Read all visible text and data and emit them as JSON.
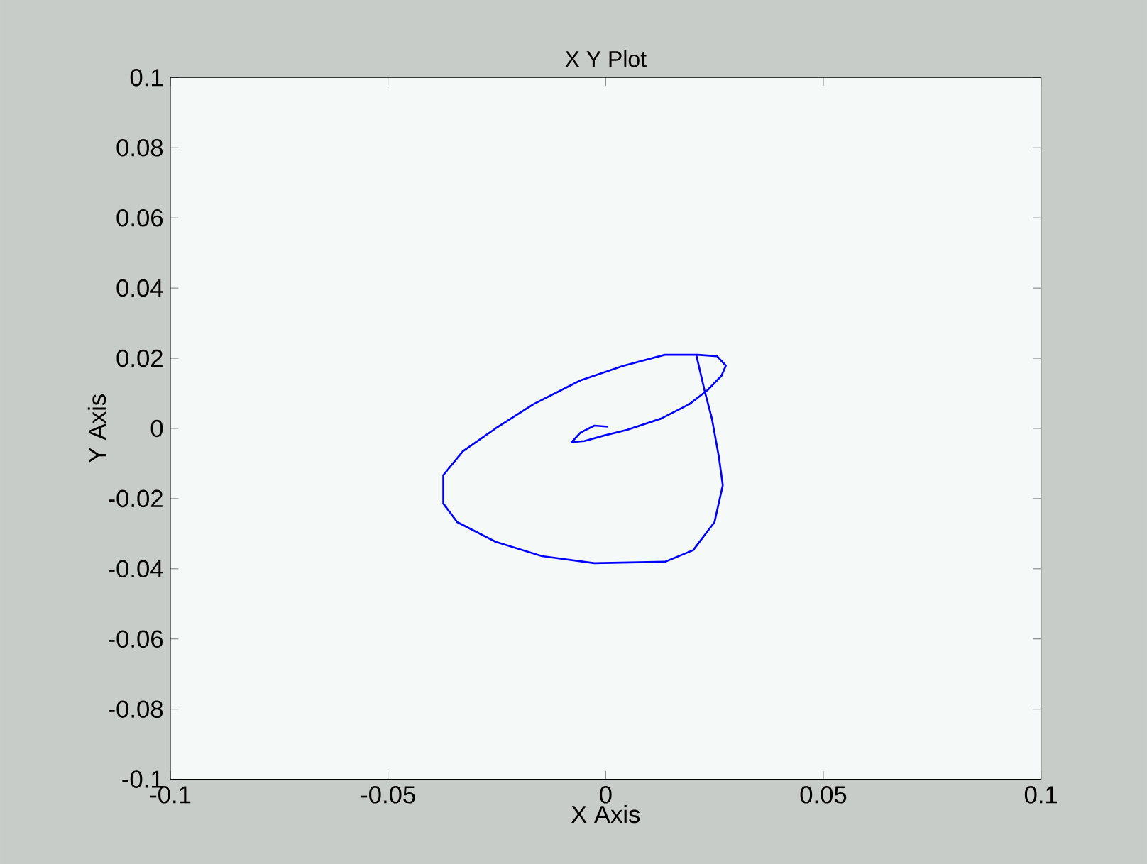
{
  "chart_data": {
    "type": "line",
    "title": "X Y Plot",
    "xlabel": "X Axis",
    "ylabel": "Y Axis",
    "xlim": [
      -0.1,
      0.1
    ],
    "ylim": [
      -0.1,
      0.1
    ],
    "xticks": [
      -0.1,
      -0.05,
      0,
      0.05,
      0.1
    ],
    "yticks": [
      -0.1,
      -0.08,
      -0.06,
      -0.04,
      -0.02,
      0,
      0.02,
      0.04,
      0.06,
      0.08,
      0.1
    ],
    "series": [
      {
        "color": "#0000ff",
        "x": [
          0.0006,
          -0.0026,
          -0.0058,
          -0.0078,
          -0.0049,
          -0.0003,
          0.0049,
          0.0127,
          0.0192,
          0.0234,
          0.0266,
          0.0276,
          0.0256,
          0.0211,
          0.0136,
          0.0039,
          -0.0058,
          -0.0166,
          -0.0253,
          -0.0328,
          -0.0373,
          -0.0373,
          -0.0341,
          -0.0253,
          -0.0146,
          -0.0026,
          0.0136,
          0.0201,
          0.025,
          0.0269,
          0.026,
          0.0244,
          0.0227,
          0.0208
        ],
        "values": [
          0.0005,
          0.0008,
          -0.0012,
          -0.0039,
          -0.0036,
          -0.002,
          -0.0004,
          0.0028,
          0.0069,
          0.0109,
          0.015,
          0.0179,
          0.0206,
          0.021,
          0.021,
          0.0178,
          0.0137,
          0.0069,
          0.0,
          -0.0065,
          -0.0133,
          -0.0214,
          -0.0267,
          -0.0323,
          -0.0364,
          -0.0384,
          -0.038,
          -0.0347,
          -0.0267,
          -0.0162,
          -0.0081,
          0.0028,
          0.0109,
          0.021
        ]
      }
    ]
  }
}
